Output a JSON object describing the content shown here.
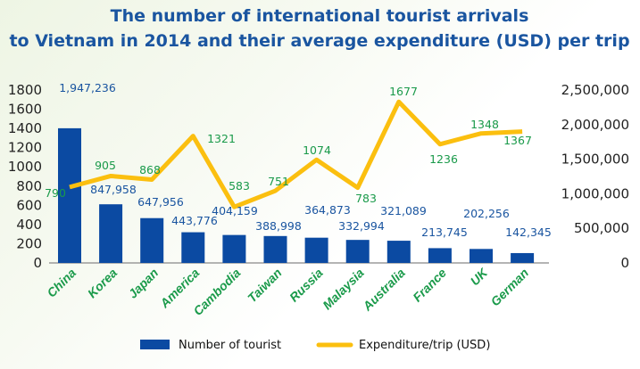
{
  "chart_data": {
    "type": "bar+line",
    "title": [
      "The number of international tourist arrivals",
      "to Vietnam in 2014 and their average expenditure (USD) per trip"
    ],
    "categories": [
      "China",
      "Korea",
      "Japan",
      "America",
      "Cambodia",
      "Taiwan",
      "Russia",
      "Malaysia",
      "Australia",
      "France",
      "UK",
      "German"
    ],
    "series": [
      {
        "name": "Number of tourist",
        "type": "bar",
        "axis": "right",
        "color": "#0b4aa2",
        "values": [
          1947236,
          847958,
          647956,
          443776,
          404159,
          388998,
          364873,
          332994,
          321089,
          213745,
          202256,
          142345
        ],
        "labels": [
          "1,947,236",
          "847,958",
          "647,956",
          "443,776",
          "404,159",
          "388,998",
          "364,873",
          "332,994",
          "321,089",
          "213,745",
          "202,256",
          "142,345"
        ]
      },
      {
        "name": "Expenditure/trip (USD)",
        "type": "line",
        "axis": "left",
        "color": "#fbbf0f",
        "values": [
          790,
          905,
          868,
          1321,
          583,
          751,
          1074,
          783,
          1677,
          1236,
          1348,
          1367
        ],
        "labels": [
          "790",
          "905",
          "868",
          "1321",
          "583",
          "751",
          "1074",
          "783",
          "1677",
          "1236",
          "1348",
          "1367"
        ]
      }
    ],
    "left_axis": {
      "ylim": [
        0,
        1800
      ],
      "ticks": [
        "0",
        "200",
        "400",
        "600",
        "800",
        "1000",
        "1200",
        "1400",
        "1600",
        "1800"
      ]
    },
    "right_axis": {
      "ylim": [
        0,
        2500000
      ],
      "ticks": [
        "0",
        "500,000",
        "1,000,000",
        "1,500,000",
        "2,000,000",
        "2,500,000"
      ]
    },
    "grid": false,
    "legend": {
      "placement": "bottom",
      "items": [
        "Number of tourist",
        "Expenditure/trip (USD)"
      ]
    }
  }
}
